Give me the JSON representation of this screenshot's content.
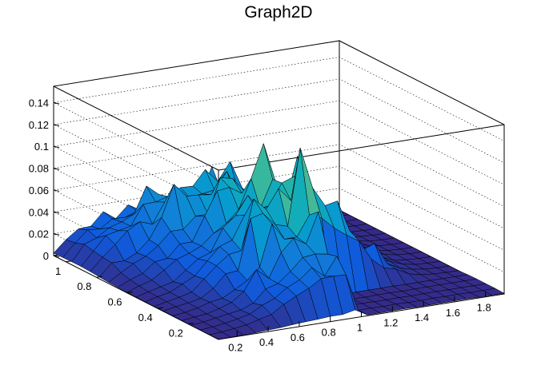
{
  "chart_data": {
    "type": "surface",
    "title": "Graph2D",
    "xlabel": "",
    "ylabel": "",
    "zlabel": "",
    "xlim": [
      0.08,
      1.92
    ],
    "ylim": [
      0.0,
      1.08
    ],
    "zlim": [
      0,
      0.155
    ],
    "x_ticks": [
      "0.2",
      "0.4",
      "0.6",
      "0.8",
      "1",
      "1.2",
      "1.4",
      "1.6",
      "1.8"
    ],
    "x_tick_values": [
      0.2,
      0.4,
      0.6,
      0.8,
      1.0,
      1.2,
      1.4,
      1.6,
      1.8
    ],
    "y_ticks": [
      "0.2",
      "0.4",
      "0.6",
      "0.8",
      "1"
    ],
    "y_tick_values": [
      0.2,
      0.4,
      0.6,
      0.8,
      1.0
    ],
    "z_ticks": [
      "0",
      "0.02",
      "0.04",
      "0.06",
      "0.08",
      "0.1",
      "0.12",
      "0.14"
    ],
    "z_tick_values": [
      0,
      0.02,
      0.04,
      0.06,
      0.08,
      0.1,
      0.12,
      0.14
    ],
    "grid": true,
    "colormap": "parula (dark blue → cyan → green → yellow)",
    "peak": {
      "x": 1.0,
      "y": 0.35,
      "z": 0.118
    },
    "surface_model": {
      "description": "broad bump that rises from near 0 at low x/y to about 0.07–0.09 around x≈0.8–1.0 with many narrow spikes; flat (≈0) region for x>1 at low y",
      "grid_x": [
        0.08,
        0.16,
        0.24,
        0.32,
        0.4,
        0.48,
        0.56,
        0.64,
        0.72,
        0.8,
        0.88,
        0.96,
        1.04,
        1.12,
        1.2,
        1.28,
        1.36,
        1.44,
        1.52,
        1.6,
        1.68,
        1.76,
        1.84,
        1.92
      ],
      "grid_y": [
        0.0,
        0.06,
        0.12,
        0.18,
        0.24,
        0.3,
        0.36,
        0.42,
        0.48,
        0.54,
        0.6,
        0.66,
        0.72,
        0.78,
        0.84,
        0.9,
        0.96,
        1.02,
        1.08
      ]
    }
  }
}
